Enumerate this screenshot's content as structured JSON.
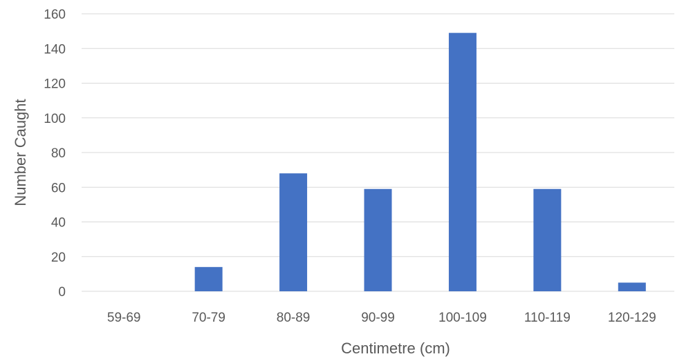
{
  "chart_data": {
    "type": "bar",
    "title": "",
    "xlabel": "Centimetre (cm)",
    "ylabel": "Number Caught",
    "categories": [
      "59-69",
      "70-79",
      "80-89",
      "90-99",
      "100-109",
      "110-119",
      "120-129"
    ],
    "values": [
      0,
      14,
      68,
      59,
      149,
      59,
      5
    ],
    "ylim": [
      0,
      160
    ],
    "yticks": [
      0,
      20,
      40,
      60,
      80,
      100,
      120,
      140,
      160
    ],
    "grid": true,
    "legend": "none",
    "bar_color": "#4472c4",
    "grid_color": "#d9d9d9",
    "text_color": "#595959"
  }
}
